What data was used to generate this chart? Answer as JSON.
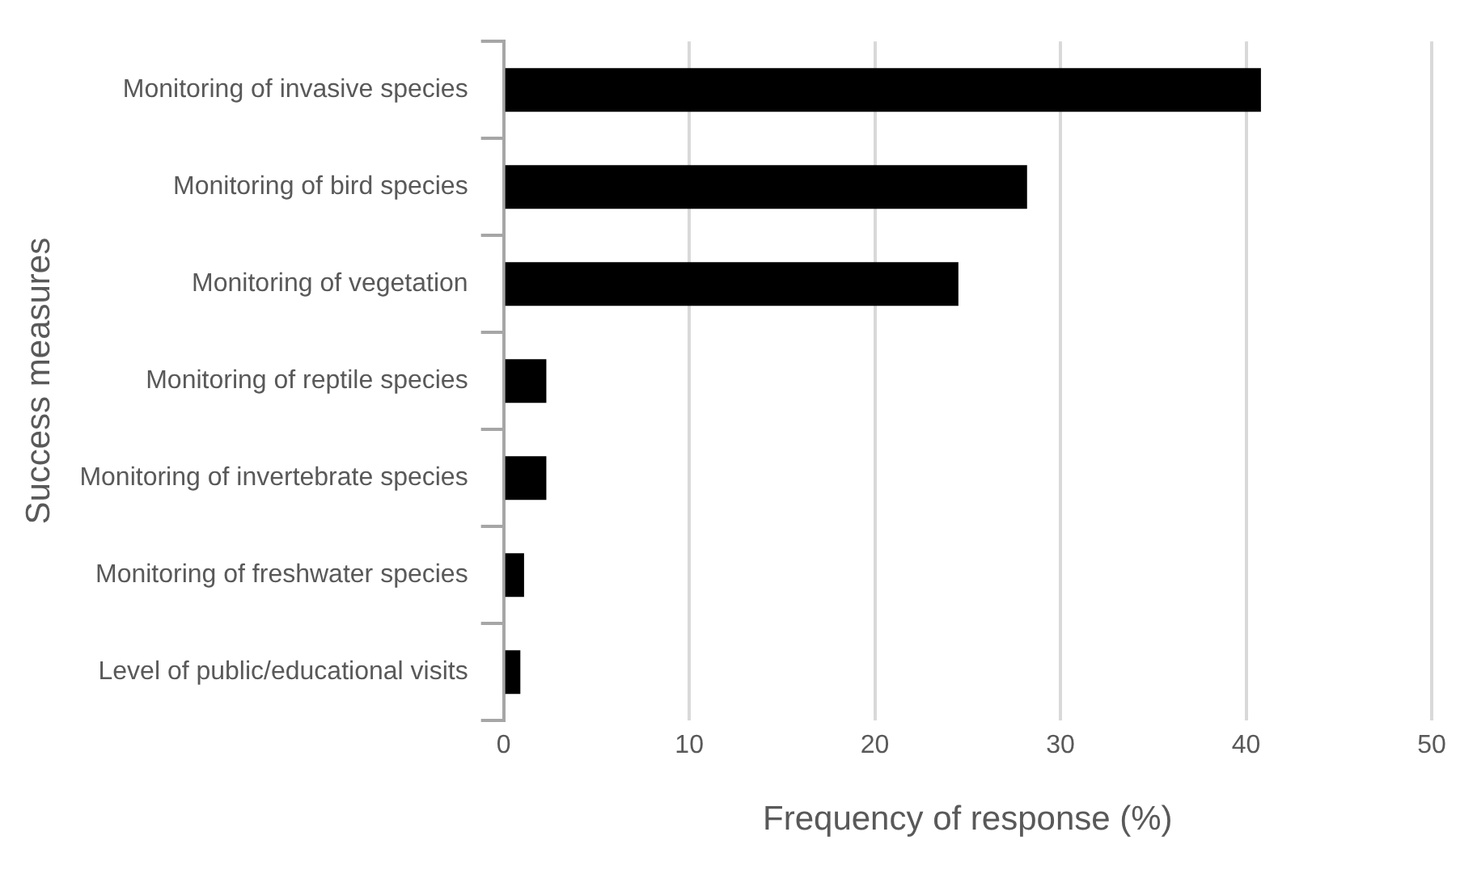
{
  "chart_data": {
    "type": "bar",
    "orientation": "horizontal",
    "xlabel": "Frequency of response (%)",
    "ylabel": "Success measures",
    "categories": [
      "Monitoring of invasive species",
      "Monitoring of bird species",
      "Monitoring of vegetation",
      "Monitoring of reptile species",
      "Monitoring of invertebrate species",
      "Monitoring of freshwater species",
      "Level of public/educational visits"
    ],
    "values": [
      40.8,
      28.2,
      24.5,
      2.3,
      2.3,
      1.1,
      0.9
    ],
    "color": "#000000",
    "xlim": [
      0,
      50
    ],
    "xticks": [
      0,
      10,
      20,
      30,
      40,
      50
    ],
    "grid": "x",
    "legend": false
  }
}
